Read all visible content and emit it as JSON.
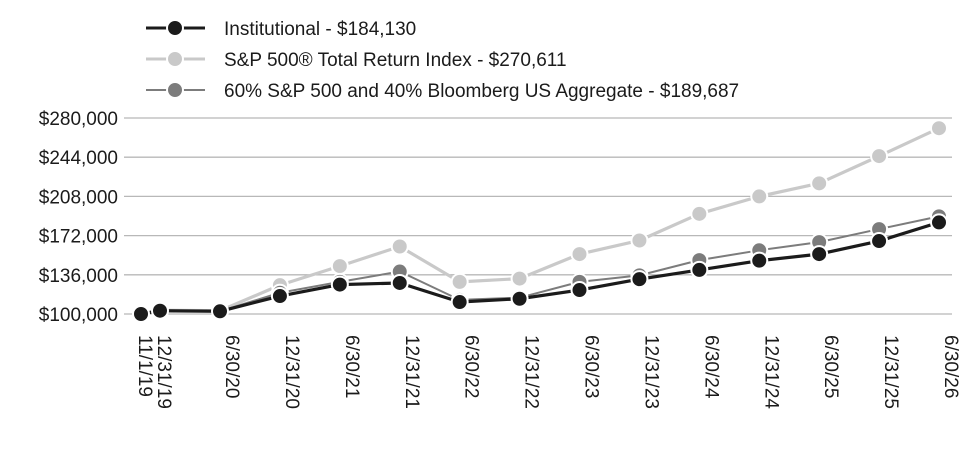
{
  "chart_data": {
    "type": "line",
    "title": "",
    "xlabel": "",
    "ylabel": "",
    "ylim": [
      100000,
      280000
    ],
    "y_ticks": [
      "$280,000",
      "$244,000",
      "$208,000",
      "$172,000",
      "$136,000",
      "$100,000"
    ],
    "y_tick_values": [
      280000,
      244000,
      208000,
      172000,
      136000,
      100000
    ],
    "x_ticks": [
      "11/1/19",
      "12/31/19",
      "6/30/20",
      "12/31/20",
      "6/30/21",
      "12/31/21",
      "6/30/22",
      "12/31/22",
      "6/30/23",
      "12/31/23",
      "6/30/24",
      "12/31/24",
      "6/30/25",
      "12/31/25",
      "6/30/26"
    ],
    "x": [
      "2019-11-01",
      "2019-12-31",
      "2020-06-30",
      "2020-12-31",
      "2021-06-30",
      "2021-12-31",
      "2022-06-30",
      "2022-12-31",
      "2023-06-30",
      "2023-12-31",
      "2024-06-30",
      "2024-12-31",
      "2025-06-30",
      "2025-12-31",
      "2026-06-30"
    ],
    "grid": true,
    "legend_position": "top-left",
    "series": [
      {
        "name": "S&P 500® Total Return Index - $270,611",
        "color": "#c9c9c9",
        "values": [
          100000,
          103500,
          103000,
          126500,
          144000,
          162000,
          129500,
          132500,
          155000,
          167500,
          192000,
          208000,
          220000,
          245000,
          270611
        ]
      },
      {
        "name": "60% S&P 500 and 40% Bloomberg US Aggregate - $189,687",
        "color": "#7c7c7c",
        "values": [
          100000,
          103000,
          102500,
          119500,
          129500,
          139000,
          113000,
          115000,
          129500,
          135500,
          149500,
          158500,
          166000,
          178000,
          189687
        ]
      },
      {
        "name": "Institutional - $184,130",
        "color": "#1b1b1b",
        "values": [
          100000,
          103000,
          102500,
          116500,
          127000,
          128500,
          111000,
          114000,
          122000,
          132000,
          140500,
          149000,
          155000,
          167000,
          184130
        ]
      }
    ]
  }
}
